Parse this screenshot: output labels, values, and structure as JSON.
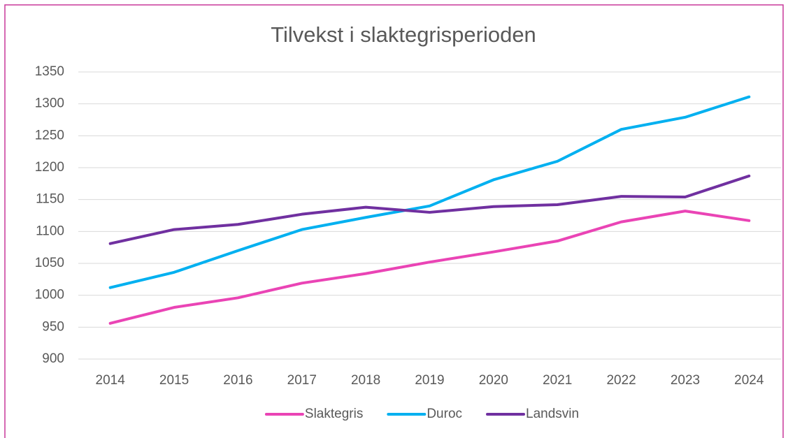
{
  "chart_data": {
    "type": "line",
    "title": "Tilvekst i slaktegrisperioden",
    "categories": [
      "2014",
      "2015",
      "2016",
      "2017",
      "2018",
      "2019",
      "2020",
      "2021",
      "2022",
      "2023",
      "2024"
    ],
    "series": [
      {
        "name": "Slaktegris",
        "color": "#ea44b5",
        "values": [
          956,
          981,
          996,
          1019,
          1034,
          1052,
          1068,
          1085,
          1115,
          1132,
          1117
        ]
      },
      {
        "name": "Duroc",
        "color": "#00b0f0",
        "values": [
          1012,
          1036,
          1070,
          1103,
          1122,
          1140,
          1181,
          1210,
          1260,
          1279,
          1311
        ]
      },
      {
        "name": "Landsvin",
        "color": "#7030a0",
        "values": [
          1081,
          1103,
          1111,
          1127,
          1138,
          1130,
          1139,
          1142,
          1155,
          1154,
          1187
        ]
      }
    ],
    "ylim": [
      900,
      1350
    ],
    "yticks": [
      900,
      950,
      1000,
      1050,
      1100,
      1150,
      1200,
      1250,
      1300,
      1350
    ],
    "grid": true,
    "legend": "bottom"
  }
}
